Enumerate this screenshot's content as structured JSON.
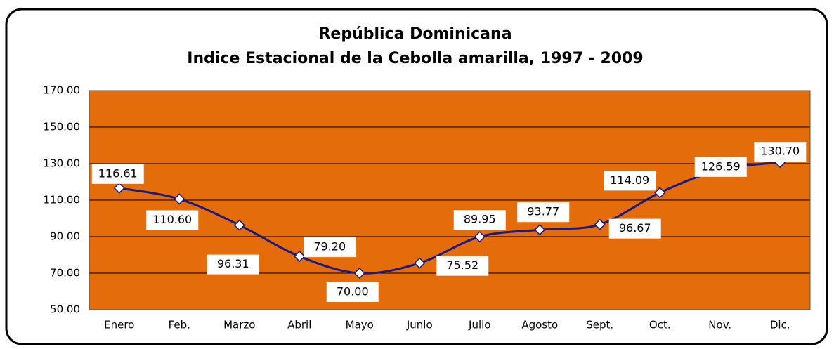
{
  "chart_data": {
    "type": "line",
    "title": [
      "República Dominicana",
      "Indice Estacional de la Cebolla amarilla, 1997 - 2009"
    ],
    "categories": [
      "Enero",
      "Feb.",
      "Marzo",
      "Abril",
      "Mayo",
      "Junio",
      "Julio",
      "Agosto",
      "Sept.",
      "Oct.",
      "Nov.",
      "Dic."
    ],
    "series": [
      {
        "color": "#1a1a80",
        "values": [
          116.61,
          110.6,
          96.31,
          79.2,
          70,
          75.52,
          89.95,
          93.77,
          96.67,
          114.09,
          126.59,
          130.7
        ],
        "value_labels": [
          "116.61",
          "110.60",
          "96.31",
          "79.20",
          "70.00",
          "75.52",
          "89.95",
          "93.77",
          "96.67",
          "114.09",
          "126.59",
          "130.70"
        ]
      }
    ],
    "ylim": [
      50,
      170
    ],
    "yticks": [
      {
        "value": 50,
        "label": "50.00"
      },
      {
        "value": 70,
        "label": "70.00"
      },
      {
        "value": 90,
        "label": "90.00"
      },
      {
        "value": 110,
        "label": "110.00"
      },
      {
        "value": 130,
        "label": "130.00"
      },
      {
        "value": 150,
        "label": "150.00"
      },
      {
        "value": 170,
        "label": "170.00"
      }
    ],
    "grid": true,
    "plot_color": "#e46c0a"
  }
}
